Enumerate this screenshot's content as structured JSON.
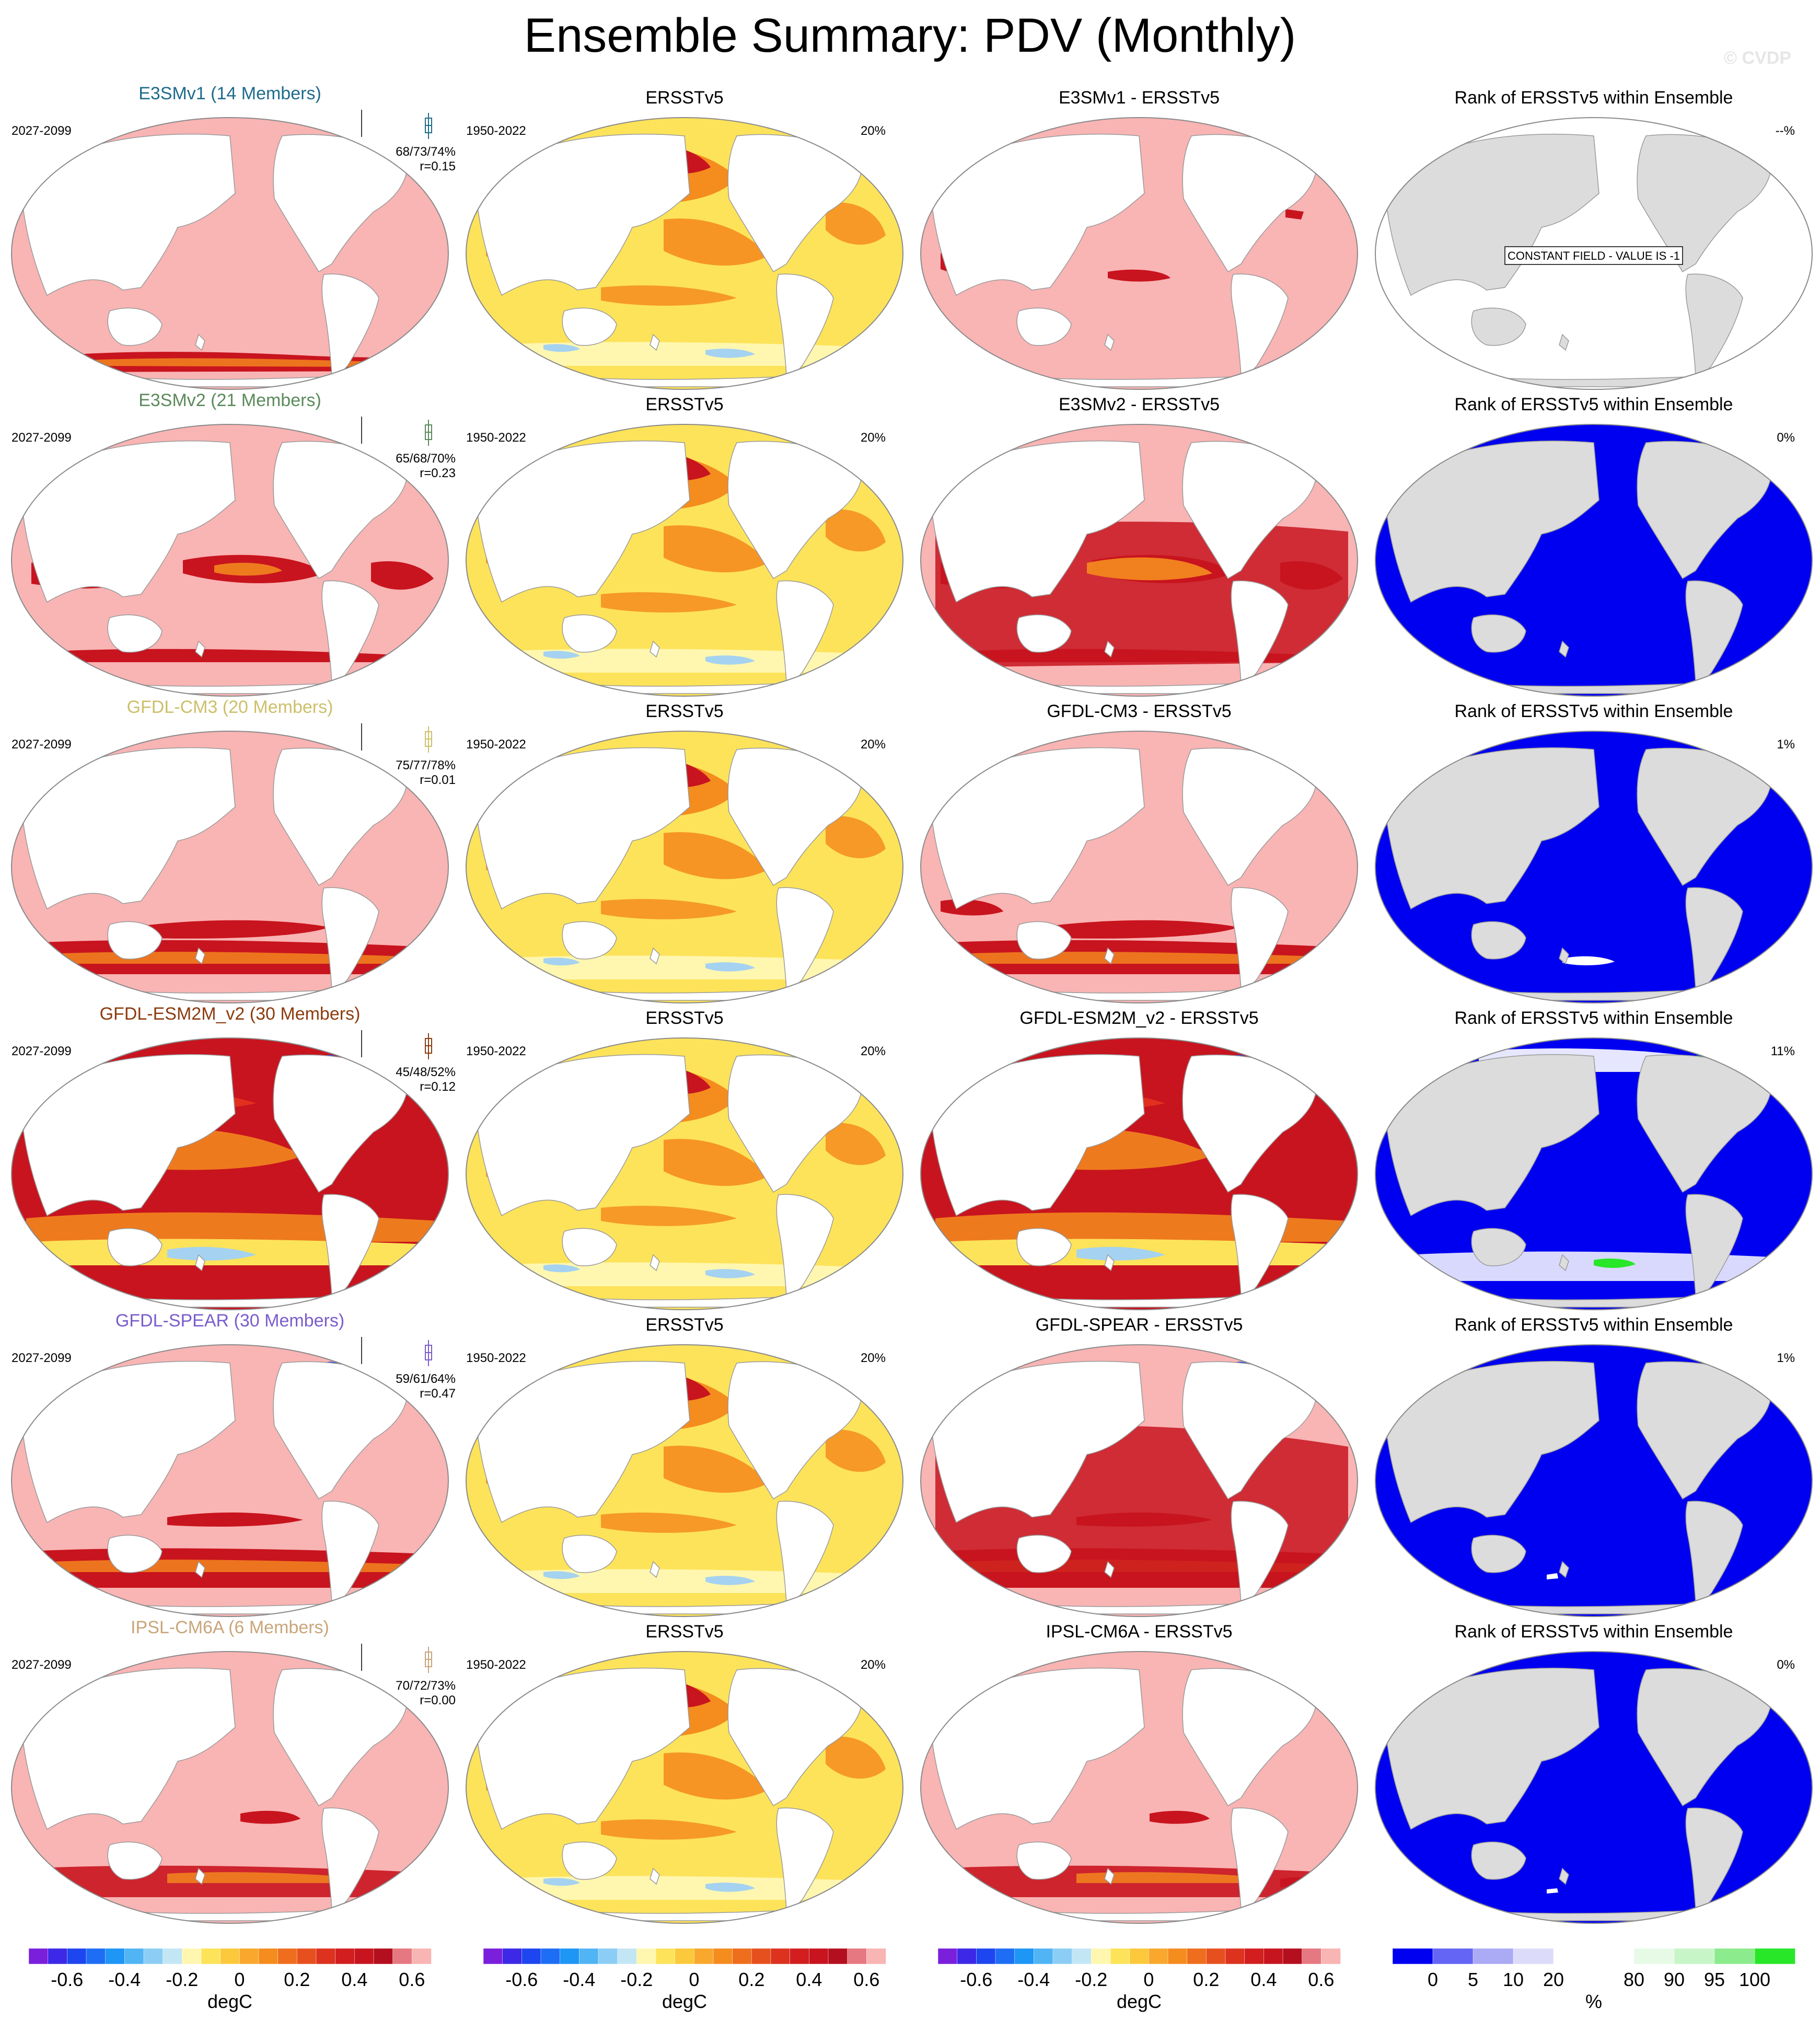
{
  "title": "Ensemble Summary: PDV (Monthly)",
  "watermark": "© CVDP",
  "colors": {
    "pink_base": "#f9b4b4",
    "dark_red": "#c8141e",
    "red": "#e6321e",
    "orange": "#f58c1e",
    "yellow": "#fde35a",
    "light_yellow": "#fff7b0",
    "light_blue": "#a5d2f0",
    "rank_blue": "#0000f0",
    "rank_gray": "#dcdcdc",
    "rank_green": "#28e628",
    "map_outline": "#9a9a9a"
  },
  "rows": [
    {
      "model": "E3SMv1 (14 Members)",
      "model_color": "#1f6b8c",
      "model_period": "2027-2099",
      "stats": "68/73/74%",
      "corr": "r=0.15",
      "obs_title": "ERSSTv5",
      "obs_period": "1950-2022",
      "obs_pct": "20%",
      "diff_title": "E3SMv1 - ERSSTv5",
      "rank_title": "Rank of ERSSTv5 within Ensemble",
      "rank_pct": "--%",
      "rank_note": "CONSTANT FIELD - VALUE IS -1"
    },
    {
      "model": "E3SMv2 (21 Members)",
      "model_color": "#5b8a5b",
      "model_period": "2027-2099",
      "stats": "65/68/70%",
      "corr": "r=0.23",
      "obs_title": "ERSSTv5",
      "obs_period": "1950-2022",
      "obs_pct": "20%",
      "diff_title": "E3SMv2 - ERSSTv5",
      "rank_title": "Rank of ERSSTv5 within Ensemble",
      "rank_pct": "0%",
      "rank_note": ""
    },
    {
      "model": "GFDL-CM3 (20 Members)",
      "model_color": "#cdbf6a",
      "model_period": "2027-2099",
      "stats": "75/77/78%",
      "corr": "r=0.01",
      "obs_title": "ERSSTv5",
      "obs_period": "1950-2022",
      "obs_pct": "20%",
      "diff_title": "GFDL-CM3 - ERSSTv5",
      "rank_title": "Rank of ERSSTv5 within Ensemble",
      "rank_pct": "1%",
      "rank_note": ""
    },
    {
      "model": "GFDL-ESM2M_v2 (30 Members)",
      "model_color": "#8c3c0f",
      "model_period": "2027-2099",
      "stats": "45/48/52%",
      "corr": "r=0.12",
      "obs_title": "ERSSTv5",
      "obs_period": "1950-2022",
      "obs_pct": "20%",
      "diff_title": "GFDL-ESM2M_v2 - ERSSTv5",
      "rank_title": "Rank of ERSSTv5 within Ensemble",
      "rank_pct": "11%",
      "rank_note": ""
    },
    {
      "model": "GFDL-SPEAR (30 Members)",
      "model_color": "#7b5ccc",
      "model_period": "2027-2099",
      "stats": "59/61/64%",
      "corr": "r=0.47",
      "obs_title": "ERSSTv5",
      "obs_period": "1950-2022",
      "obs_pct": "20%",
      "diff_title": "GFDL-SPEAR - ERSSTv5",
      "rank_title": "Rank of ERSSTv5 within Ensemble",
      "rank_pct": "1%",
      "rank_note": ""
    },
    {
      "model": "IPSL-CM6A (6 Members)",
      "model_color": "#c9a57a",
      "model_period": "2027-2099",
      "stats": "70/72/73%",
      "corr": "r=0.00",
      "obs_title": "ERSSTv5",
      "obs_period": "1950-2022",
      "obs_pct": "20%",
      "diff_title": "IPSL-CM6A - ERSSTv5",
      "rank_title": "Rank of ERSSTv5 within Ensemble",
      "rank_pct": "0%",
      "rank_note": ""
    }
  ],
  "colorbars": [
    {
      "unit": "degC",
      "ticks": [
        "-0.6",
        "-0.4",
        "-0.2",
        "0",
        "0.2",
        "0.4",
        "0.6"
      ],
      "colors": [
        "#7a1fdc",
        "#3c28e6",
        "#1e46f0",
        "#1e6ef5",
        "#1e96f5",
        "#50b4f5",
        "#8ccdf5",
        "#c3e6f5",
        "#fff7b0",
        "#fde35a",
        "#fcc83c",
        "#f9a82d",
        "#f58c1e",
        "#ef6e1e",
        "#e6501e",
        "#dc321e",
        "#d21e1e",
        "#c8141e",
        "#b40f1e",
        "#e67882",
        "#f9b4b4"
      ]
    },
    {
      "unit": "degC",
      "ticks": [
        "-0.6",
        "-0.4",
        "-0.2",
        "0",
        "0.2",
        "0.4",
        "0.6"
      ],
      "colors": [
        "#7a1fdc",
        "#3c28e6",
        "#1e46f0",
        "#1e6ef5",
        "#1e96f5",
        "#50b4f5",
        "#8ccdf5",
        "#c3e6f5",
        "#fff7b0",
        "#fde35a",
        "#fcc83c",
        "#f9a82d",
        "#f58c1e",
        "#ef6e1e",
        "#e6501e",
        "#dc321e",
        "#d21e1e",
        "#c8141e",
        "#b40f1e",
        "#e67882",
        "#f9b4b4"
      ]
    },
    {
      "unit": "degC",
      "ticks": [
        "-0.6",
        "-0.4",
        "-0.2",
        "0",
        "0.2",
        "0.4",
        "0.6"
      ],
      "colors": [
        "#7a1fdc",
        "#3c28e6",
        "#1e46f0",
        "#1e6ef5",
        "#1e96f5",
        "#50b4f5",
        "#8ccdf5",
        "#c3e6f5",
        "#fff7b0",
        "#fde35a",
        "#fcc83c",
        "#f9a82d",
        "#f58c1e",
        "#ef6e1e",
        "#e6501e",
        "#dc321e",
        "#d21e1e",
        "#c8141e",
        "#b40f1e",
        "#e67882",
        "#f9b4b4"
      ]
    },
    {
      "unit": "%",
      "ticks": [
        "0",
        "5",
        "10",
        "20",
        "80",
        "90",
        "95",
        "100"
      ],
      "colors": [
        "#0000f0",
        "#6464f5",
        "#aaaaf5",
        "#dcdcfa",
        "#ffffff",
        "#ffffff",
        "#e6fae6",
        "#c8f5c8",
        "#8ceb8c",
        "#28e628"
      ]
    }
  ]
}
